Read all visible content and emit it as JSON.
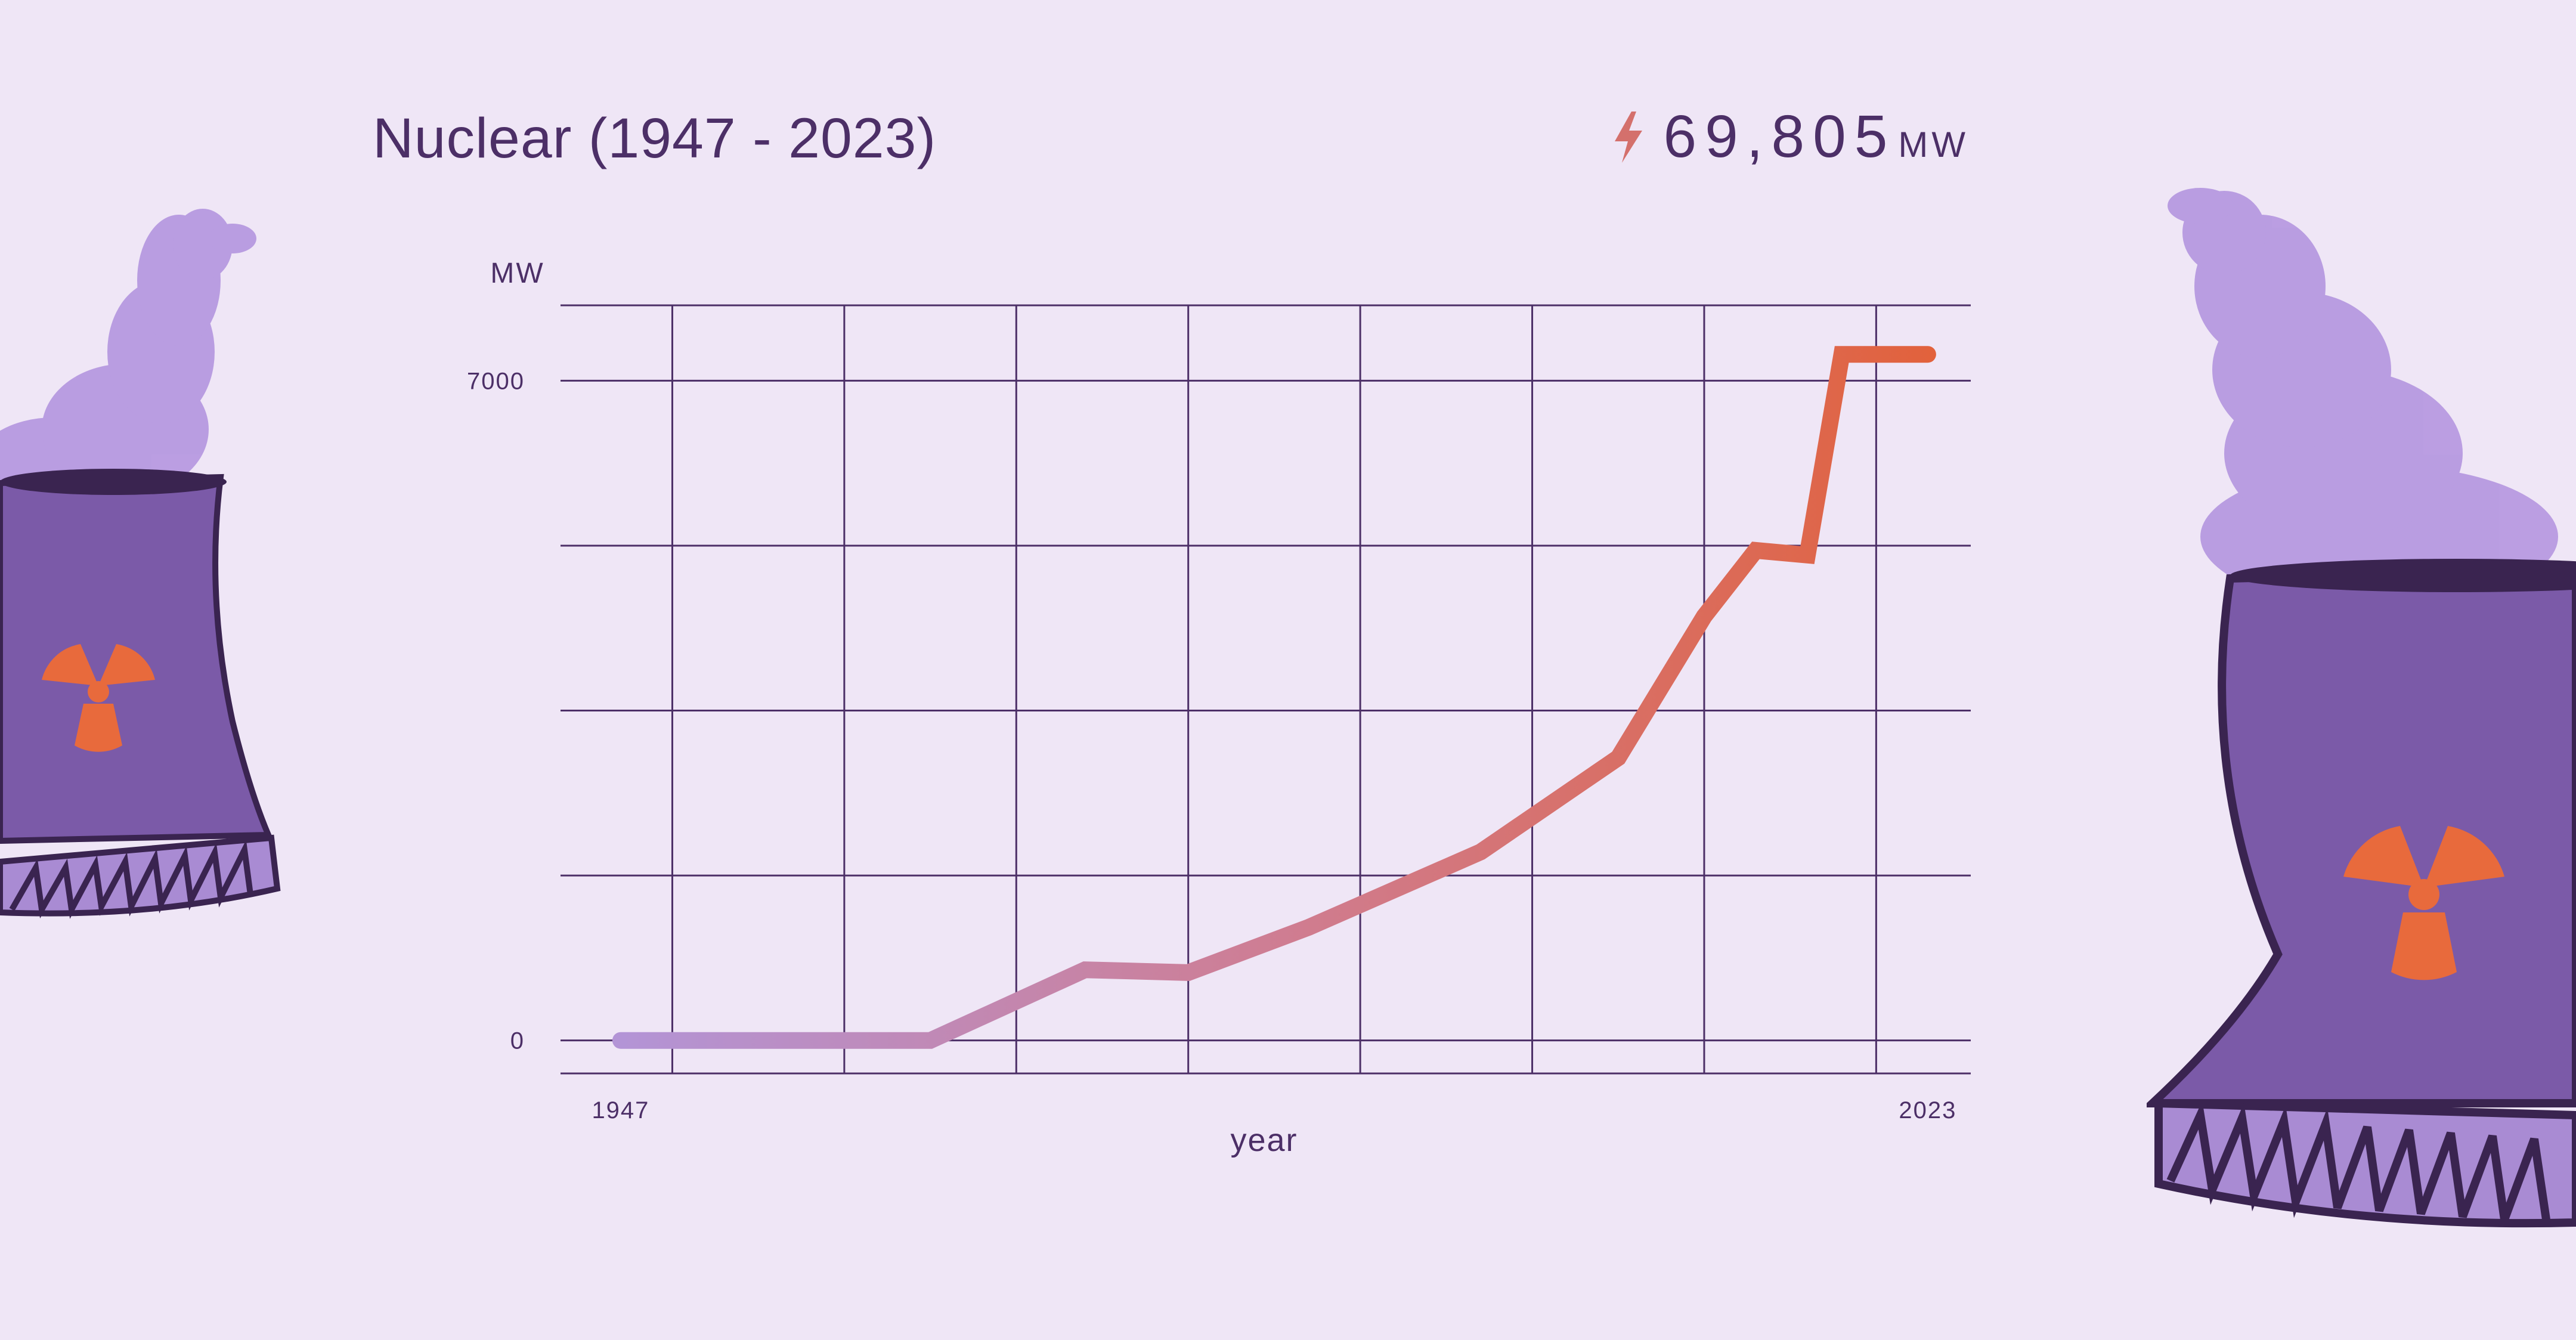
{
  "title": "Nuclear (1947 - 2023)",
  "total": {
    "value": "69,805",
    "unit": "MW"
  },
  "icons": {
    "total": "lightning-bolt-icon",
    "towers": "nuclear-cooling-tower-icon"
  },
  "colors": {
    "background": "#efe6f6",
    "text": "#4c2f67",
    "grid": "#4c2f67",
    "line_start": "#b394d6",
    "line_end": "#e2613a",
    "tower_body": "#7b5aa8",
    "smoke": "#b79ae0",
    "radiation": "#e86a3c"
  },
  "chart_data": {
    "type": "line",
    "ylabel": "MW",
    "xlabel": "year",
    "x_tick_labels": [
      "1947",
      "2023"
    ],
    "y_tick_labels": [
      "0",
      "7000"
    ],
    "ylim": [
      -350,
      7800
    ],
    "xlim": [
      1943.5,
      2025.5
    ],
    "grid": true,
    "x": [
      1947,
      1965,
      1974,
      1980,
      1987,
      1997,
      2005,
      2010,
      2013,
      2016,
      2018,
      2023
    ],
    "values": [
      0,
      0,
      750,
      720,
      1200,
      2000,
      3000,
      4500,
      5200,
      5150,
      7280,
      7280
    ]
  }
}
